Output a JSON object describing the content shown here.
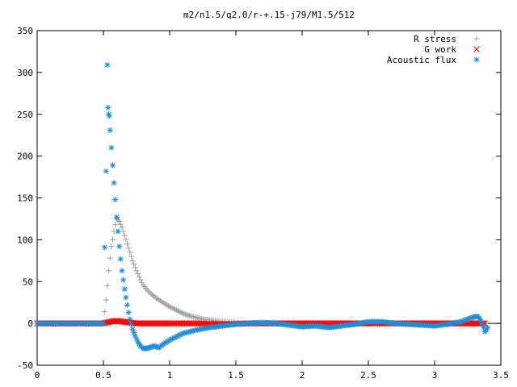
{
  "chart_data": {
    "type": "scatter",
    "title": "m2/n1.5/q2.0/r-+.15-j79/M1.5/512",
    "xlabel": "",
    "ylabel": "",
    "xlim": [
      0,
      3.5
    ],
    "ylim": [
      -50,
      350
    ],
    "x_ticks": [
      "0",
      "0.5",
      "1",
      "1.5",
      "2",
      "2.5",
      "3",
      "3.5"
    ],
    "y_ticks": [
      "-50",
      "0",
      "50",
      "100",
      "150",
      "200",
      "250",
      "300",
      "350"
    ],
    "grid": false,
    "legend_placement": "top-right",
    "series": [
      {
        "name": "R stress",
        "marker": "plus",
        "color": "#a0a0a0",
        "x": [
          0.0,
          0.5,
          0.52,
          0.53,
          0.54,
          0.55,
          0.56,
          0.57,
          0.58,
          0.59,
          0.6,
          0.62,
          0.64,
          0.66,
          0.68,
          0.7,
          0.72,
          0.75,
          0.78,
          0.8,
          0.83,
          0.86,
          0.88,
          0.9,
          0.95,
          1.0,
          1.05,
          1.1,
          1.15,
          1.2,
          1.25,
          1.3,
          1.4,
          1.5,
          1.6,
          1.7,
          1.8,
          2.0,
          2.2,
          2.5,
          2.8,
          3.0,
          3.2,
          3.3,
          3.38
        ],
        "y": [
          0,
          0,
          28,
          45,
          63,
          78,
          92,
          100,
          110,
          118,
          125,
          122,
          115,
          105,
          95,
          85,
          75,
          63,
          52,
          46,
          40,
          35,
          33,
          30,
          25,
          20,
          16,
          12,
          9,
          7,
          5,
          4,
          2,
          1,
          0,
          0,
          0,
          0,
          0,
          0,
          0,
          0,
          0,
          0,
          0
        ]
      },
      {
        "name": "G work",
        "marker": "cross",
        "color": "#ff0000",
        "x": [
          0.0,
          0.5,
          0.55,
          0.6,
          0.65,
          0.7,
          0.75,
          0.8,
          0.9,
          1.0,
          1.2,
          1.4,
          1.6,
          1.8,
          2.0,
          2.2,
          2.4,
          2.6,
          2.8,
          3.0,
          3.2,
          3.3,
          3.38
        ],
        "y": [
          0,
          0,
          2,
          3,
          2,
          1,
          0,
          0,
          0,
          0,
          0,
          -1,
          0,
          0,
          0,
          0,
          0,
          0,
          0,
          0,
          0,
          0,
          0
        ]
      },
      {
        "name": "Acoustic flux",
        "marker": "asterisk",
        "color": "#1f8dd6",
        "x": [
          0.0,
          0.5,
          0.52,
          0.53,
          0.535,
          0.54,
          0.545,
          0.55,
          0.56,
          0.57,
          0.58,
          0.59,
          0.6,
          0.61,
          0.62,
          0.63,
          0.64,
          0.65,
          0.66,
          0.67,
          0.68,
          0.69,
          0.7,
          0.72,
          0.74,
          0.76,
          0.78,
          0.8,
          0.82,
          0.85,
          0.88,
          0.9,
          0.92,
          0.95,
          1.0,
          1.05,
          1.1,
          1.2,
          1.3,
          1.4,
          1.5,
          1.6,
          1.7,
          1.8,
          1.9,
          2.0,
          2.1,
          2.2,
          2.3,
          2.4,
          2.5,
          2.6,
          2.7,
          2.8,
          2.9,
          3.0,
          3.1,
          3.2,
          3.25,
          3.3,
          3.33,
          3.35,
          3.37,
          3.38,
          3.4
        ],
        "y": [
          0,
          0,
          182,
          309,
          258,
          250,
          248,
          231,
          210,
          189,
          168,
          148,
          127,
          110,
          92,
          77,
          63,
          52,
          41,
          31,
          22,
          13,
          5,
          -7,
          -15,
          -22,
          -27,
          -30,
          -30,
          -29,
          -27,
          -28,
          -29,
          -25,
          -20,
          -16,
          -12,
          -8,
          -5,
          -3,
          -1,
          0,
          1,
          0,
          -2,
          -4,
          -3,
          -5,
          -3,
          -1,
          2,
          2,
          0,
          -1,
          -2,
          -3,
          -1,
          2,
          5,
          8,
          8,
          3,
          -5,
          -10,
          -5
        ]
      }
    ]
  }
}
